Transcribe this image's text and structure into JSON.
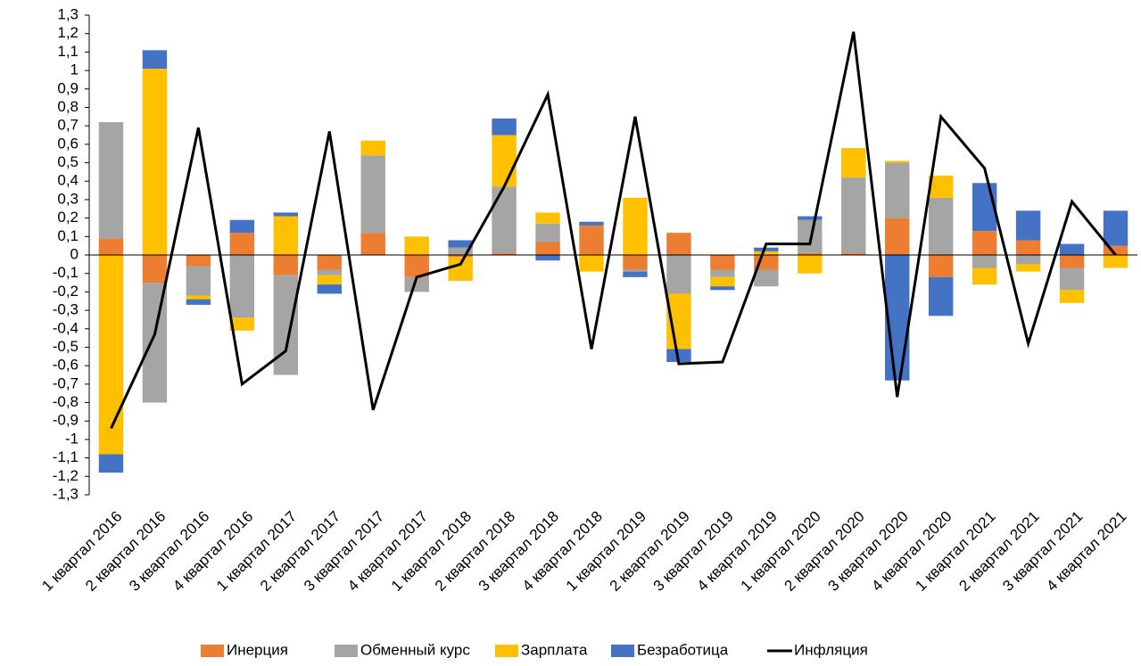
{
  "chart_data": {
    "type": "bar",
    "categories": [
      "1 квартал 2016",
      "2 квартал 2016",
      "3 квартал 2016",
      "4 квартал 2016",
      "1 квартал 2017",
      "2 квартал 2017",
      "3 квартал 2017",
      "4 квартал 2017",
      "1 квартал 2018",
      "2 квартал 2018",
      "3 квартал 2018",
      "4 квартал 2018",
      "1 квартал 2019",
      "2 квартал 2019",
      "3 квартал 2019",
      "4 квартал 2019",
      "1 квартал 2020",
      "2 квартал 2020",
      "3 квартал 2020",
      "4 квартал 2020",
      "1 квартал 2021",
      "2 квартал 2021",
      "3 квартал 2021",
      "4 квартал 2021"
    ],
    "series": [
      {
        "name": "Инерция",
        "type": "bar",
        "color": "#ed7d31",
        "values": [
          0.09,
          -0.15,
          -0.06,
          0.12,
          -0.11,
          -0.08,
          0.12,
          -0.12,
          -0.01,
          0.01,
          0.07,
          0.16,
          -0.08,
          0.12,
          -0.08,
          -0.08,
          0.01,
          0.01,
          0.2,
          -0.12,
          0.13,
          0.08,
          -0.07,
          0.05
        ]
      },
      {
        "name": "Обменный курс",
        "type": "bar",
        "color": "#a5a5a5",
        "values": [
          0.63,
          -0.65,
          -0.16,
          -0.34,
          -0.54,
          -0.03,
          0.42,
          -0.08,
          0.04,
          0.36,
          0.1,
          0,
          -0.01,
          -0.21,
          -0.04,
          -0.09,
          0.18,
          0.41,
          0.3,
          0.31,
          -0.07,
          -0.05,
          -0.12,
          0
        ]
      },
      {
        "name": "Зарплата",
        "type": "bar",
        "color": "#ffc000",
        "values": [
          -1.08,
          1.01,
          -0.02,
          -0.07,
          0.21,
          -0.05,
          0.08,
          0.1,
          -0.13,
          0.28,
          0.06,
          -0.09,
          0.31,
          -0.3,
          -0.05,
          0.02,
          -0.1,
          0.16,
          0.01,
          0.12,
          -0.09,
          -0.04,
          -0.07,
          -0.07
        ]
      },
      {
        "name": "Безработица",
        "type": "bar",
        "color": "#4472c4",
        "values": [
          -0.1,
          0.1,
          -0.03,
          0.07,
          0.02,
          -0.05,
          0,
          0,
          0.04,
          0.09,
          -0.03,
          0.02,
          -0.03,
          -0.07,
          -0.02,
          0.02,
          0.02,
          0,
          -0.68,
          -0.21,
          0.26,
          0.16,
          0.06,
          0.19
        ]
      },
      {
        "name": "Инфляция",
        "type": "line",
        "color": "#000000",
        "values": [
          -0.94,
          -0.43,
          0.69,
          -0.7,
          -0.52,
          0.67,
          -0.84,
          -0.12,
          -0.05,
          0.37,
          0.87,
          -0.51,
          0.75,
          -0.59,
          -0.58,
          0.06,
          0.06,
          1.21,
          -0.77,
          0.75,
          0.47,
          -0.48,
          0.29,
          0
        ]
      }
    ],
    "ylim": [
      -1.3,
      1.3
    ],
    "yticks": [
      {
        "value": 1.3,
        "label": "1,3"
      },
      {
        "value": 1.2,
        "label": "1,2"
      },
      {
        "value": 1.1,
        "label": "1,1"
      },
      1,
      {
        "value": 0.9,
        "label": "0,9"
      },
      {
        "value": 0.8,
        "label": "0,8"
      },
      {
        "value": 0.7,
        "label": "0,7"
      },
      {
        "value": 0.6,
        "label": "0,6"
      },
      {
        "value": 0.5,
        "label": "0,5"
      },
      {
        "value": 0.4,
        "label": "0,4"
      },
      {
        "value": 0.3,
        "label": "0,3"
      },
      {
        "value": 0.2,
        "label": "0,2"
      },
      {
        "value": 0.1,
        "label": "0,1"
      },
      0,
      {
        "value": -0.1,
        "label": "-0,1"
      },
      {
        "value": -0.2,
        "label": "-0,2"
      },
      {
        "value": -0.3,
        "label": "-0,3"
      },
      {
        "value": -0.4,
        "label": "-0,4"
      },
      {
        "value": -0.5,
        "label": "-0,5"
      },
      {
        "value": -0.6,
        "label": "-0,6"
      },
      {
        "value": -0.7,
        "label": "-0,7"
      },
      {
        "value": -0.8,
        "label": "-0,8"
      },
      {
        "value": -0.9,
        "label": "-0,9"
      },
      -1,
      {
        "value": -1.1,
        "label": "-1,1"
      },
      {
        "value": -1.2,
        "label": "-1,2"
      },
      {
        "value": -1.3,
        "label": "-1,3"
      }
    ],
    "grid": false,
    "legend": "bottom"
  }
}
